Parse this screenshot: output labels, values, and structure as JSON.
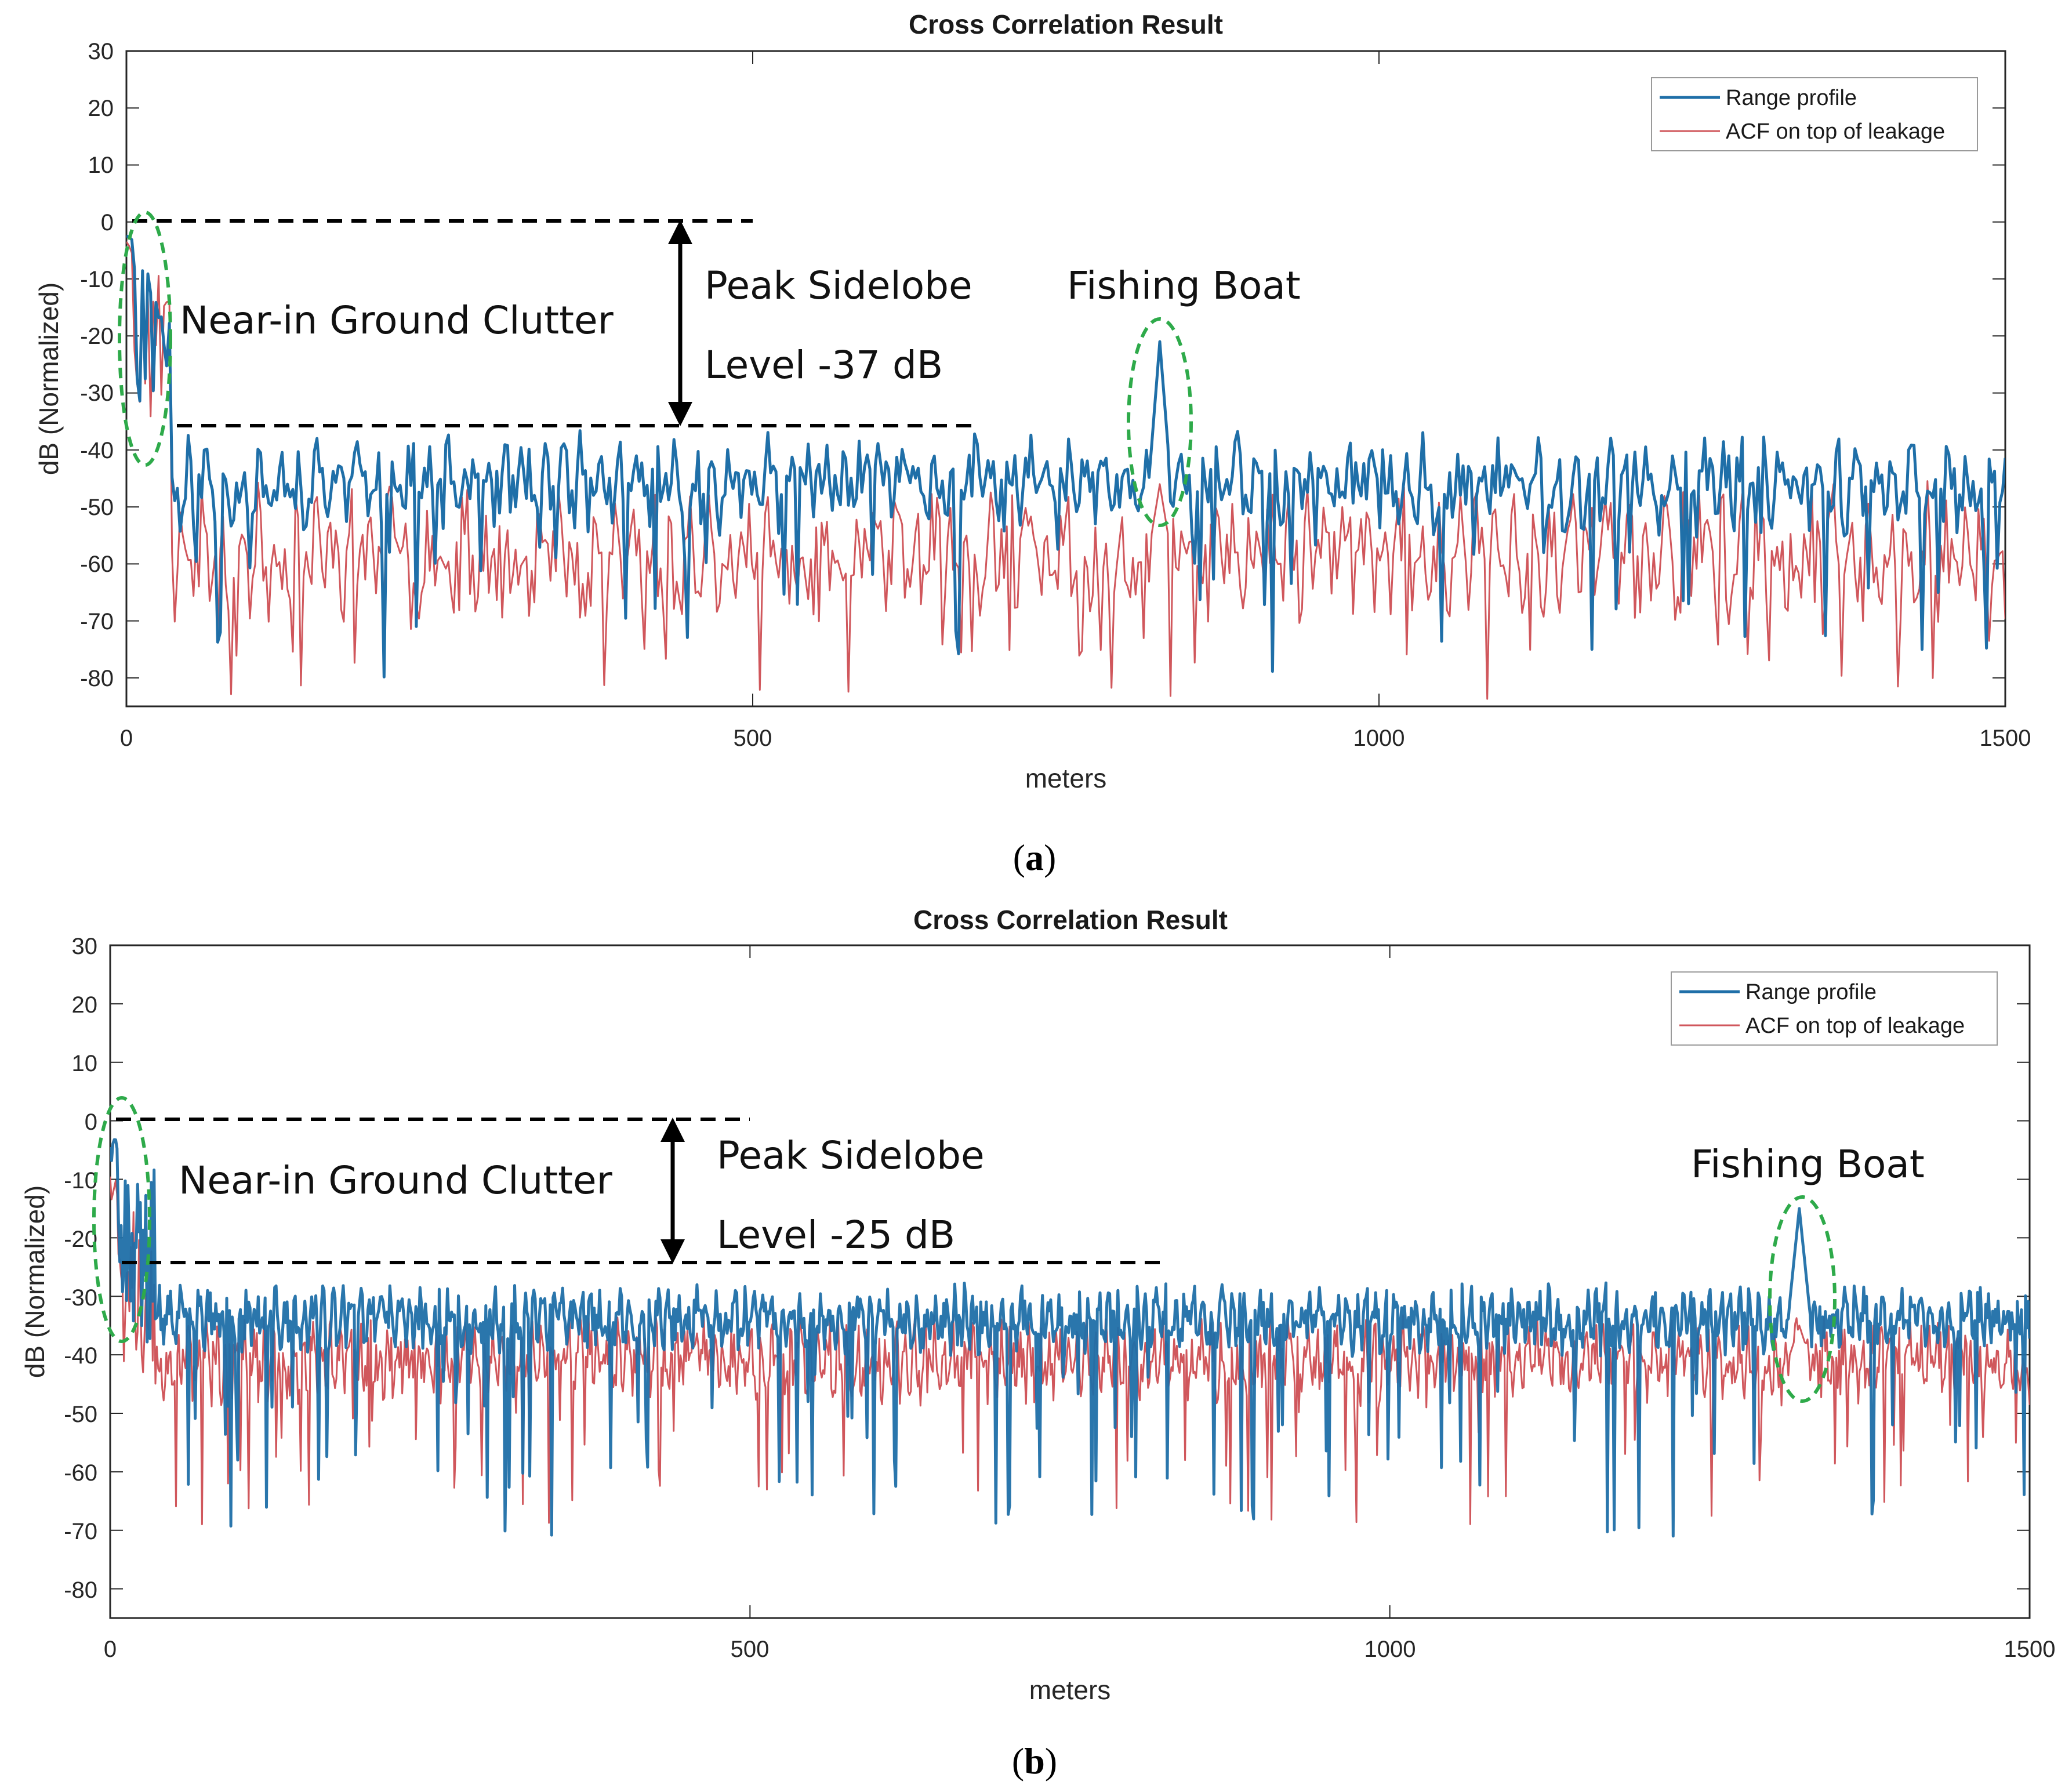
{
  "chart_data": [
    {
      "type": "line",
      "panel": "a",
      "caption_parts": [
        "(",
        "a",
        ")"
      ],
      "title": "Cross Correlation Result",
      "xlabel": "meters",
      "ylabel": "dB (Normalized)",
      "xlim": [
        0,
        1500
      ],
      "ylim": [
        -85,
        30
      ],
      "xticks": [
        0,
        500,
        1000,
        1500
      ],
      "xtick_labels": [
        "0",
        "500",
        "1000",
        "1500"
      ],
      "yticks": [
        30,
        20,
        10,
        0,
        -10,
        -20,
        -30,
        -40,
        -50,
        -60,
        -70,
        -80
      ],
      "ytick_labels": [
        "30",
        "20",
        "10",
        "0",
        "-10",
        "-20",
        "-30",
        "-40",
        "-50",
        "-60",
        "-70",
        "-80"
      ],
      "legend": {
        "location": "top-right",
        "entries": [
          "Range profile",
          "ACF on top of leakage"
        ]
      },
      "series": [
        {
          "name": "Range profile",
          "color": "#1f6fa8",
          "near_peak": -1,
          "baseline": -46,
          "spread": 6,
          "dip_min": -80,
          "target_x": 825,
          "target_peak": -21,
          "seed": 11,
          "points": 700
        },
        {
          "name": "ACF on top of leakage",
          "color": "#d0575c",
          "near_peak": -2,
          "baseline": -58,
          "spread": 8,
          "dip_min": -84,
          "target_x": 825,
          "target_peak": -46,
          "seed": 23,
          "points": 700
        }
      ],
      "annotations": {
        "clutter": "Near-in Ground Clutter",
        "sidelobe_line1": "Peak Sidelobe",
        "sidelobe_line2": "Level  -37 dB",
        "target": "Fishing Boat",
        "peak_level_db": 0,
        "sidelobe_level_db": -36,
        "sidelobe_db": -37,
        "clutter_range_m": [
          0,
          35
        ],
        "target_x": 825
      }
    },
    {
      "type": "line",
      "panel": "b",
      "caption_parts": [
        "(",
        "b",
        ")"
      ],
      "title": "Cross Correlation Result",
      "xlabel": "meters",
      "ylabel": "dB (Normalized)",
      "xlim": [
        0,
        1500
      ],
      "ylim": [
        -85,
        30
      ],
      "xticks": [
        0,
        500,
        1000,
        1500
      ],
      "xtick_labels": [
        "0",
        "500",
        "1000",
        "1500"
      ],
      "yticks": [
        30,
        20,
        10,
        0,
        -10,
        -20,
        -30,
        -40,
        -50,
        -60,
        -70,
        -80
      ],
      "ytick_labels": [
        "30",
        "20",
        "10",
        "0",
        "-10",
        "-20",
        "-30",
        "-40",
        "-50",
        "-60",
        "-70",
        "-80"
      ],
      "legend": {
        "location": "top-right",
        "entries": [
          "Range profile",
          "ACF on top of leakage"
        ]
      },
      "series": [
        {
          "name": "Range profile",
          "color": "#1f6fa8",
          "near_peak": -3,
          "baseline": -34,
          "spread": 4,
          "dip_min": -71,
          "target_x": 1320,
          "target_peak": -15,
          "seed": 37,
          "points": 1400
        },
        {
          "name": "ACF on top of leakage",
          "color": "#d0575c",
          "near_peak": -8,
          "baseline": -41,
          "spread": 5,
          "dip_min": -69,
          "target_x": 1320,
          "target_peak": -35,
          "seed": 51,
          "points": 1400
        }
      ],
      "annotations": {
        "clutter": "Near-in Ground Clutter",
        "sidelobe_line1": "Peak Sidelobe",
        "sidelobe_line2": "Level  -25 dB",
        "target": "Fishing Boat",
        "peak_level_db": 0,
        "sidelobe_level_db": -24,
        "sidelobe_db": -25,
        "clutter_range_m": [
          0,
          35
        ],
        "target_x": 1320
      }
    }
  ]
}
